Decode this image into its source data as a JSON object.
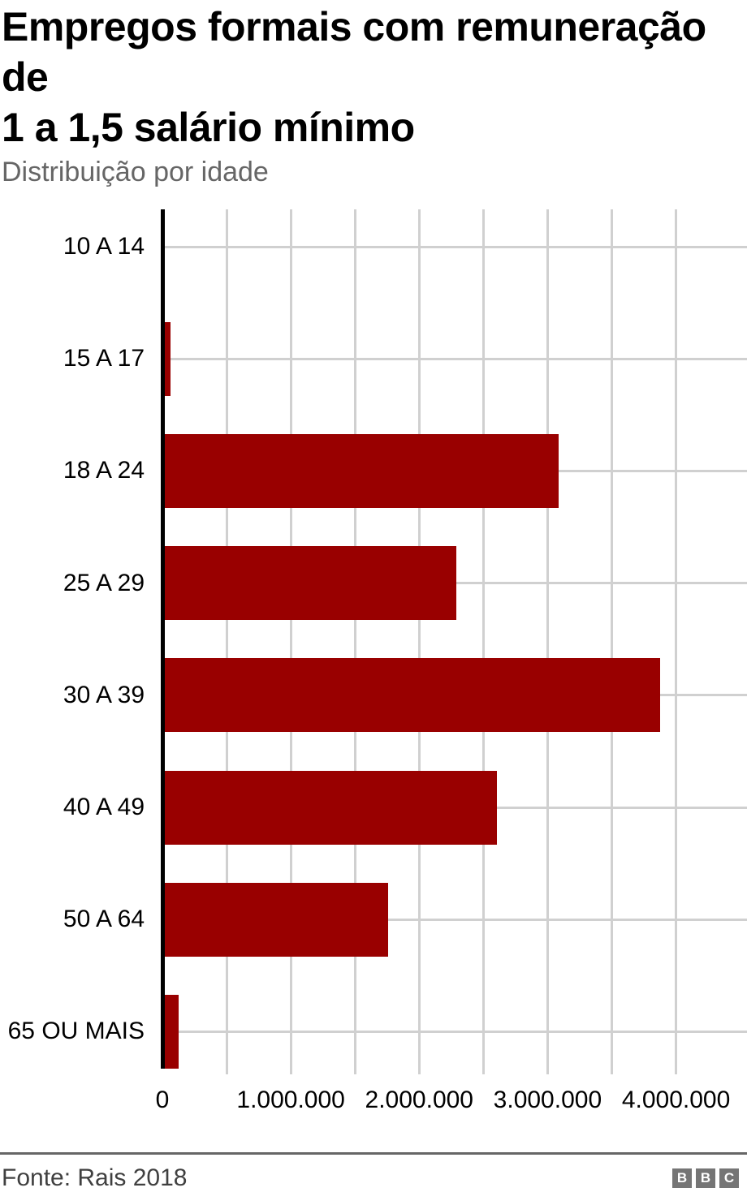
{
  "header": {
    "title_lines": [
      "Empregos formais com remuneração de",
      "1 a 1,5 salário mínimo"
    ],
    "title": "Empregos formais com remuneração de 1 a 1,5 salário mínimo",
    "subtitle": "Distribuição por idade"
  },
  "chart_data": {
    "type": "bar",
    "orientation": "horizontal",
    "title": "Empregos formais com remuneração de 1 a 1,5 salário mínimo",
    "subtitle": "Distribuição por idade",
    "xlabel": "",
    "ylabel": "",
    "categories": [
      "10 A 14",
      "15 A 17",
      "18 A 24",
      "25 A 29",
      "30 A 39",
      "40 A 49",
      "50 A 64",
      "65 OU MAIS"
    ],
    "values": [
      2000,
      60000,
      3080000,
      2280000,
      3870000,
      2600000,
      1750000,
      120000
    ],
    "xlim": [
      0,
      4553000
    ],
    "x_tick_values": [
      0,
      1000000,
      2000000,
      3000000,
      4000000
    ],
    "x_tick_labels": [
      "0",
      "1.000.000",
      "2.000.000",
      "3.000.000",
      "4.000.000"
    ],
    "gridline_step": 500000,
    "gridline_max": 4000000,
    "grid": true,
    "legend": "none",
    "bar_color": "#990000",
    "grid_color": "#d0d0d0",
    "axis_color": "#000000"
  },
  "footer": {
    "source": "Fonte: Rais 2018",
    "logo_letters": [
      "B",
      "B",
      "C"
    ]
  }
}
